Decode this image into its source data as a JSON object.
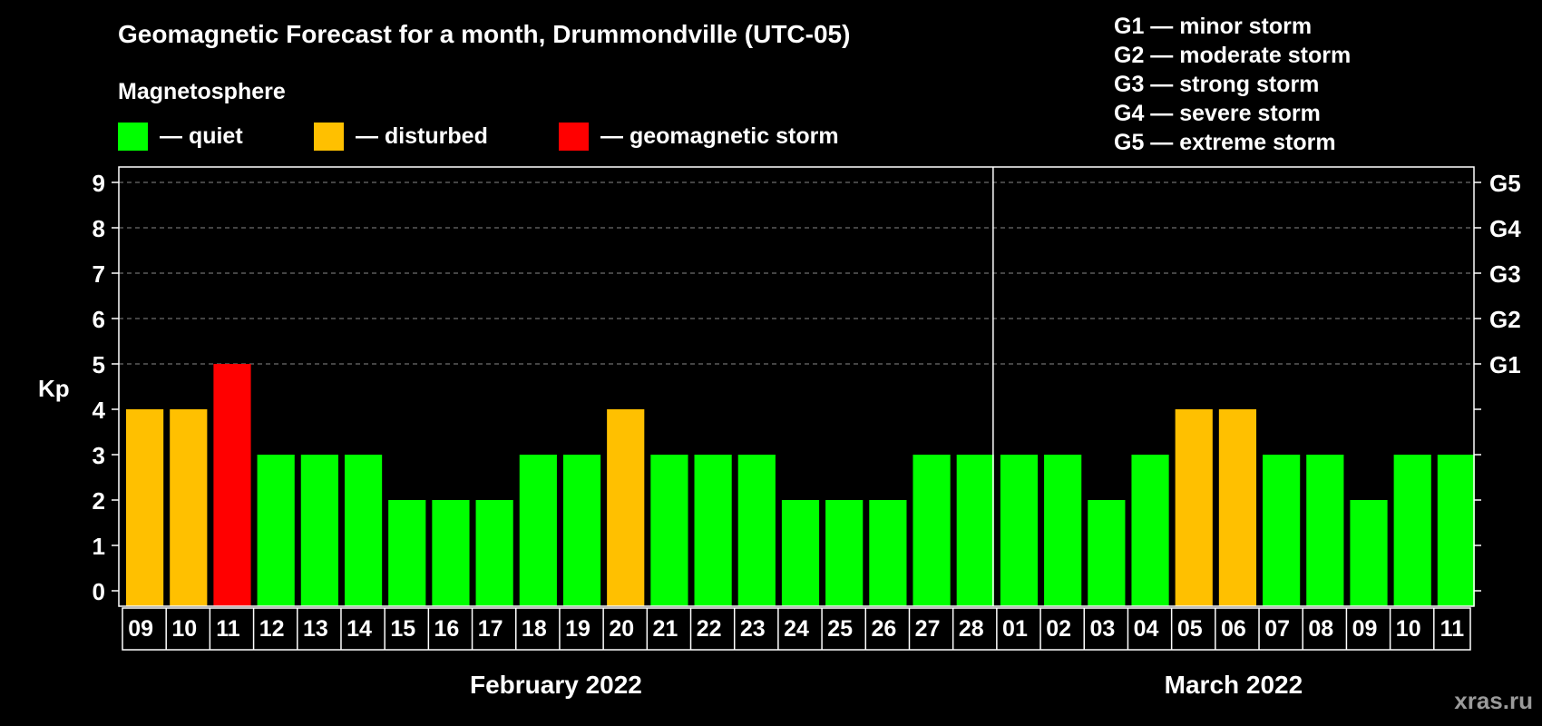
{
  "title": "Geomagnetic Forecast for a month, Drummondville (UTC-05)",
  "subtitle": "Magnetosphere",
  "legend": [
    {
      "label": "— quiet",
      "color": "#00ff00"
    },
    {
      "label": "— disturbed",
      "color": "#ffc000"
    },
    {
      "label": "— geomagnetic storm",
      "color": "#ff0000"
    }
  ],
  "storm_scale": [
    "G1 — minor storm",
    "G2 — moderate storm",
    "G3 — strong storm",
    "G4 — severe storm",
    "G5 — extreme storm"
  ],
  "watermark": "xras.ru",
  "chart_data": {
    "type": "bar",
    "ylabel": "Kp",
    "ylim": [
      0,
      9
    ],
    "yticks": [
      0,
      1,
      2,
      3,
      4,
      5,
      6,
      7,
      8,
      9
    ],
    "right_axis": [
      {
        "kp": 5,
        "label": "G1"
      },
      {
        "kp": 6,
        "label": "G2"
      },
      {
        "kp": 7,
        "label": "G3"
      },
      {
        "kp": 8,
        "label": "G4"
      },
      {
        "kp": 9,
        "label": "G5"
      }
    ],
    "grid": "dashed horizontal at Kp 5-9",
    "categories": [
      "09",
      "10",
      "11",
      "12",
      "13",
      "14",
      "15",
      "16",
      "17",
      "18",
      "19",
      "20",
      "21",
      "22",
      "23",
      "24",
      "25",
      "26",
      "27",
      "28",
      "01",
      "02",
      "03",
      "04",
      "05",
      "06",
      "07",
      "08",
      "09",
      "10",
      "11"
    ],
    "values": [
      4,
      4,
      5,
      3,
      3,
      3,
      2,
      2,
      2,
      3,
      3,
      4,
      3,
      3,
      3,
      2,
      2,
      2,
      3,
      3,
      3,
      3,
      2,
      3,
      4,
      4,
      3,
      3,
      2,
      3,
      3
    ],
    "colors": {
      "quiet": "#00ff00",
      "disturbed": "#ffc000",
      "storm": "#ff0000"
    },
    "months": [
      {
        "label": "February 2022",
        "days": 20
      },
      {
        "label": "March 2022",
        "days": 11
      }
    ]
  }
}
